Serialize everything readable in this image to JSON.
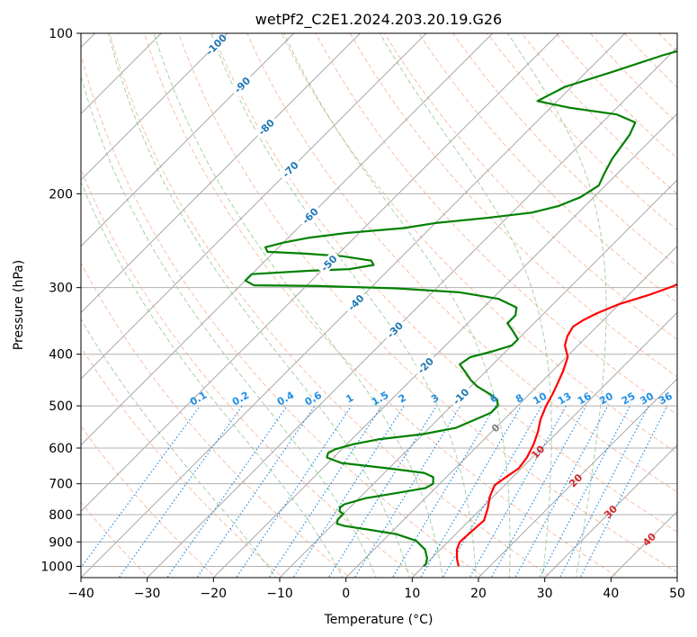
{
  "chart_data": {
    "type": "line",
    "title": "wetPf2_C2E1.2024.203.20.19.G26",
    "xlabel": "Temperature (°C)",
    "ylabel": "Pressure (hPa)",
    "xlim": [
      -40,
      50
    ],
    "ylim": [
      1050,
      100
    ],
    "x_ticks": [
      "−40",
      "−30",
      "−20",
      "−10",
      "0",
      "10",
      "20",
      "30",
      "40",
      "50"
    ],
    "y_ticks": [
      "100",
      "200",
      "300",
      "400",
      "500",
      "600",
      "700",
      "800",
      "900",
      "1000"
    ],
    "y_tick_values": [
      100,
      200,
      300,
      400,
      500,
      600,
      700,
      800,
      900,
      1000
    ],
    "skew_degrees": 45,
    "colors": {
      "temperature": "#ff0000",
      "dewpoint": "#008000",
      "isotherm": "#9e9e9e",
      "dry_adiabat": "#f4a582",
      "moist_adiabat": "#7fbf7f",
      "mixing_ratio": "#1f8fe6",
      "isotherm_label": "#1f77b4",
      "adiabat_label": "#d62728",
      "zero_label": "#7f7f7f",
      "grid": "#b0b0b0"
    },
    "series": [
      {
        "name": "Temperature",
        "points": [
          [
            15.3,
            1000
          ],
          [
            14.0,
            970
          ],
          [
            12.5,
            930
          ],
          [
            11.8,
            900
          ],
          [
            12.0,
            860
          ],
          [
            12.2,
            820
          ],
          [
            11.0,
            780
          ],
          [
            9.5,
            740
          ],
          [
            8.5,
            705
          ],
          [
            9.0,
            680
          ],
          [
            9.6,
            655
          ],
          [
            9.2,
            625
          ],
          [
            8.2,
            590
          ],
          [
            7.0,
            560
          ],
          [
            5.5,
            530
          ],
          [
            4.3,
            500
          ],
          [
            3.5,
            475
          ],
          [
            2.7,
            455
          ],
          [
            1.6,
            430
          ],
          [
            0.2,
            405
          ],
          [
            -2.0,
            385
          ],
          [
            -3.0,
            370
          ],
          [
            -3.6,
            355
          ],
          [
            -3.0,
            345
          ],
          [
            -2.0,
            335
          ],
          [
            0.0,
            322
          ],
          [
            3.0,
            310
          ],
          [
            5.5,
            298
          ],
          [
            7.0,
            285
          ],
          [
            8.0,
            268
          ],
          [
            9.0,
            248
          ],
          [
            9.0,
            228
          ],
          [
            8.5,
            208
          ],
          [
            7.5,
            190
          ],
          [
            7.0,
            172
          ],
          [
            7.3,
            158
          ],
          [
            8.0,
            148
          ],
          [
            9.5,
            140
          ],
          [
            11.5,
            133
          ],
          [
            12.3,
            124
          ],
          [
            12.0,
            116
          ],
          [
            10.8,
            108
          ],
          [
            10.8,
            101
          ],
          [
            11.5,
            98
          ]
        ]
      },
      {
        "name": "Dewpoint",
        "points": [
          [
            10.0,
            1000
          ],
          [
            10.0,
            990
          ],
          [
            9.3,
            965
          ],
          [
            7.7,
            930
          ],
          [
            5.0,
            895
          ],
          [
            1.0,
            870
          ],
          [
            -4.0,
            853
          ],
          [
            -8.0,
            840
          ],
          [
            -9.5,
            832
          ],
          [
            -10.0,
            817
          ],
          [
            -10.0,
            798
          ],
          [
            -11.0,
            788
          ],
          [
            -11.5,
            775
          ],
          [
            -11.3,
            765
          ],
          [
            -9.0,
            745
          ],
          [
            -5.0,
            728
          ],
          [
            -1.5,
            713
          ],
          [
            -1.0,
            700
          ],
          [
            -2.0,
            680
          ],
          [
            -4.0,
            668
          ],
          [
            -10.0,
            655
          ],
          [
            -18.0,
            640
          ],
          [
            -21.0,
            625
          ],
          [
            -21.5,
            613
          ],
          [
            -21.0,
            603
          ],
          [
            -19.0,
            590
          ],
          [
            -16.0,
            578
          ],
          [
            -10.0,
            565
          ],
          [
            -6.0,
            550
          ],
          [
            -4.5,
            532
          ],
          [
            -3.0,
            515
          ],
          [
            -3.0,
            500
          ],
          [
            -4.0,
            487
          ],
          [
            -6.0,
            475
          ],
          [
            -9.0,
            460
          ],
          [
            -11.0,
            447
          ],
          [
            -13.0,
            432
          ],
          [
            -15.0,
            418
          ],
          [
            -14.5,
            405
          ],
          [
            -12.0,
            395
          ],
          [
            -10.0,
            385
          ],
          [
            -10.0,
            375
          ],
          [
            -12.0,
            362
          ],
          [
            -14.0,
            350
          ],
          [
            -14.0,
            338
          ],
          [
            -15.0,
            327
          ],
          [
            -19.0,
            315
          ],
          [
            -26.0,
            306
          ],
          [
            -36.0,
            301
          ],
          [
            -48.0,
            298
          ],
          [
            -58.0,
            297
          ],
          [
            -60.0,
            291
          ],
          [
            -60.0,
            283
          ],
          [
            -52.0,
            279
          ],
          [
            -46.0,
            277
          ],
          [
            -43.0,
            272
          ],
          [
            -44.0,
            267
          ],
          [
            -49.0,
            262
          ],
          [
            -55.0,
            259
          ],
          [
            -61.0,
            257
          ],
          [
            -62.0,
            252
          ],
          [
            -60.0,
            247
          ],
          [
            -57.0,
            242
          ],
          [
            -52.0,
            237
          ],
          [
            -44.0,
            232
          ],
          [
            -40.0,
            227
          ],
          [
            -33.0,
            222
          ],
          [
            -27.0,
            217
          ],
          [
            -24.0,
            211
          ],
          [
            -22.0,
            203
          ],
          [
            -21.0,
            193
          ],
          [
            -22.0,
            183
          ],
          [
            -23.0,
            172
          ],
          [
            -23.5,
            163
          ],
          [
            -24.0,
            155
          ],
          [
            -25.0,
            147
          ],
          [
            -29.0,
            142
          ],
          [
            -37.0,
            138
          ],
          [
            -43.0,
            134
          ],
          [
            -41.0,
            126
          ],
          [
            -36.0,
            118
          ],
          [
            -31.0,
            110
          ],
          [
            -26.0,
            104
          ],
          [
            -23.0,
            100
          ]
        ]
      }
    ],
    "isotherm_labels": [
      "-100",
      "-90",
      "-80",
      "-70",
      "-60",
      "-50",
      "-40",
      "-30",
      "-20",
      "-10"
    ],
    "isotherm_label_values": [
      -100,
      -90,
      -80,
      -70,
      -60,
      -50,
      -40,
      -30,
      -20,
      -10
    ],
    "adiabat_labels": [
      "0",
      "10",
      "20",
      "30",
      "40"
    ],
    "adiabat_label_values": [
      0,
      10,
      20,
      30,
      40
    ],
    "mixing_ratio_labels": [
      "0.1",
      "0.2",
      "0.4",
      "0.6",
      "1",
      "1.5",
      "2",
      "3",
      "4",
      "6",
      "8",
      "10",
      "13",
      "16",
      "20",
      "25",
      "30",
      "36"
    ],
    "mixing_ratio_values": [
      0.1,
      0.2,
      0.4,
      0.6,
      1,
      1.5,
      2,
      3,
      4,
      6,
      8,
      10,
      13,
      16,
      20,
      25,
      30,
      36
    ]
  }
}
